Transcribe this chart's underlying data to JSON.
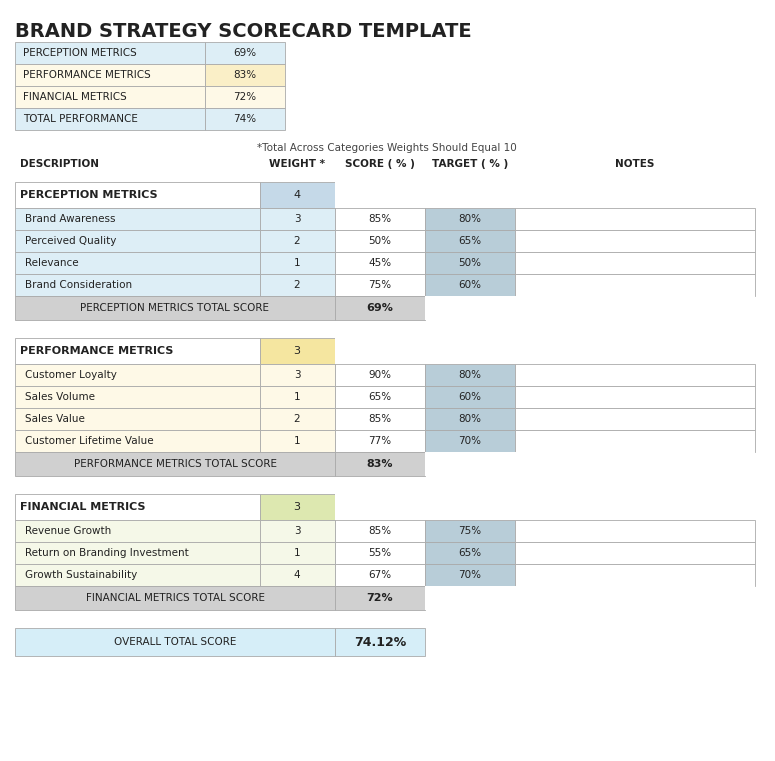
{
  "title": "BRAND STRATEGY SCORECARD TEMPLATE",
  "summary_rows": [
    {
      "label": "PERCEPTION METRICS",
      "value": "69%",
      "bg": "#ddeef6"
    },
    {
      "label": "PERFORMANCE METRICS",
      "value": "83%",
      "bg": "#fef9e7",
      "val_bg": "#faefc7"
    },
    {
      "label": "FINANCIAL METRICS",
      "value": "72%",
      "bg": "#fef9e7"
    },
    {
      "label": "TOTAL PERFORMANCE",
      "value": "74%",
      "bg": "#ddeef6"
    }
  ],
  "footnote": "*Total Across Categories Weights Should Equal 10",
  "col_headers": [
    "DESCRIPTION",
    "WEIGHT *",
    "SCORE ( % )",
    "TARGET ( % )",
    "NOTES"
  ],
  "sections": [
    {
      "name": "PERCEPTION METRICS",
      "weight": "4",
      "hdr_bg": "#c5d9e8",
      "row_bg": "#ddeef6",
      "tgt_bg": "#b8cdd8",
      "total_label": "PERCEPTION METRICS TOTAL SCORE",
      "total_score": "69%",
      "rows": [
        {
          "desc": "Brand Awareness",
          "w": "3",
          "s": "85%",
          "t": "80%"
        },
        {
          "desc": "Perceived Quality",
          "w": "2",
          "s": "50%",
          "t": "65%"
        },
        {
          "desc": "Relevance",
          "w": "1",
          "s": "45%",
          "t": "50%"
        },
        {
          "desc": "Brand Consideration",
          "w": "2",
          "s": "75%",
          "t": "60%"
        }
      ]
    },
    {
      "name": "PERFORMANCE METRICS",
      "weight": "3",
      "hdr_bg": "#f5e6a0",
      "row_bg": "#fef9e7",
      "tgt_bg": "#b8cdd8",
      "total_label": "PERFORMANCE METRICS TOTAL SCORE",
      "total_score": "83%",
      "rows": [
        {
          "desc": "Customer Loyalty",
          "w": "3",
          "s": "90%",
          "t": "80%"
        },
        {
          "desc": "Sales Volume",
          "w": "1",
          "s": "65%",
          "t": "60%"
        },
        {
          "desc": "Sales Value",
          "w": "2",
          "s": "85%",
          "t": "80%"
        },
        {
          "desc": "Customer Lifetime Value",
          "w": "1",
          "s": "77%",
          "t": "70%"
        }
      ]
    },
    {
      "name": "FINANCIAL METRICS",
      "weight": "3",
      "hdr_bg": "#dde8b0",
      "row_bg": "#f5f8e8",
      "tgt_bg": "#b8cdd8",
      "total_label": "FINANCIAL METRICS TOTAL SCORE",
      "total_score": "72%",
      "rows": [
        {
          "desc": "Revenue Growth",
          "w": "3",
          "s": "85%",
          "t": "75%"
        },
        {
          "desc": "Return on Branding Investment",
          "w": "1",
          "s": "55%",
          "t": "65%"
        },
        {
          "desc": "Growth Sustainability",
          "w": "4",
          "s": "67%",
          "t": "70%"
        }
      ]
    }
  ],
  "overall_label": "OVERALL TOTAL SCORE",
  "overall_score": "74.12%",
  "overall_bg": "#d6eef8",
  "total_row_bg": "#d0d0d0",
  "notes_bg": "#ffffff",
  "score_col_bg": "#ffffff"
}
